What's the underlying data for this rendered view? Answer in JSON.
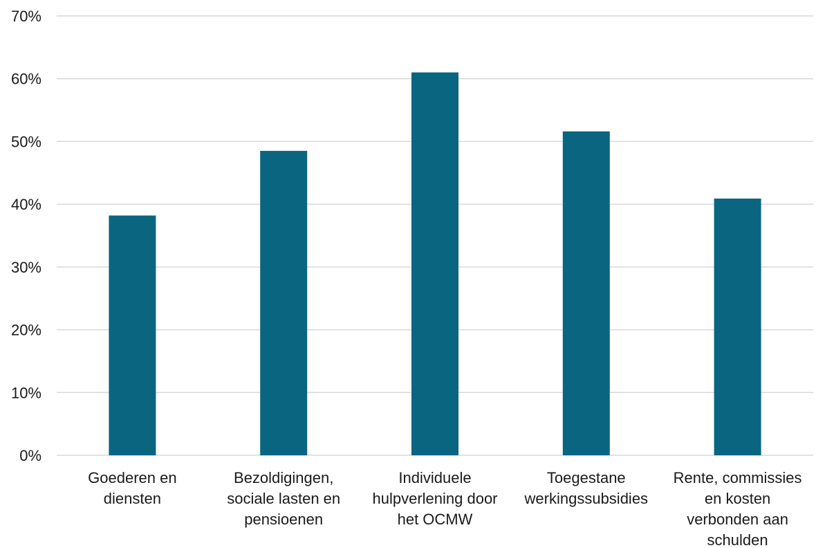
{
  "chart_data": {
    "type": "bar",
    "categories": [
      [
        "Goederen en",
        "diensten"
      ],
      [
        "Bezoldigingen,",
        "sociale lasten en",
        "pensioenen"
      ],
      [
        "Individuele",
        "hulpverlening door",
        "het OCMW"
      ],
      [
        "Toegestane",
        "werkingssubsidies"
      ],
      [
        "Rente, commissies",
        "en kosten",
        "verbonden aan",
        "schulden"
      ]
    ],
    "values": [
      38.2,
      48.5,
      61.0,
      51.6,
      40.9
    ],
    "ylim": [
      0,
      70
    ],
    "yticks": [
      0,
      10,
      20,
      30,
      40,
      50,
      60,
      70
    ],
    "ytick_labels": [
      "0%",
      "10%",
      "20%",
      "30%",
      "40%",
      "50%",
      "60%",
      "70%"
    ],
    "title": "",
    "xlabel": "",
    "ylabel": "",
    "grid": true,
    "legend": "none",
    "bar_color": "#0a6580"
  }
}
